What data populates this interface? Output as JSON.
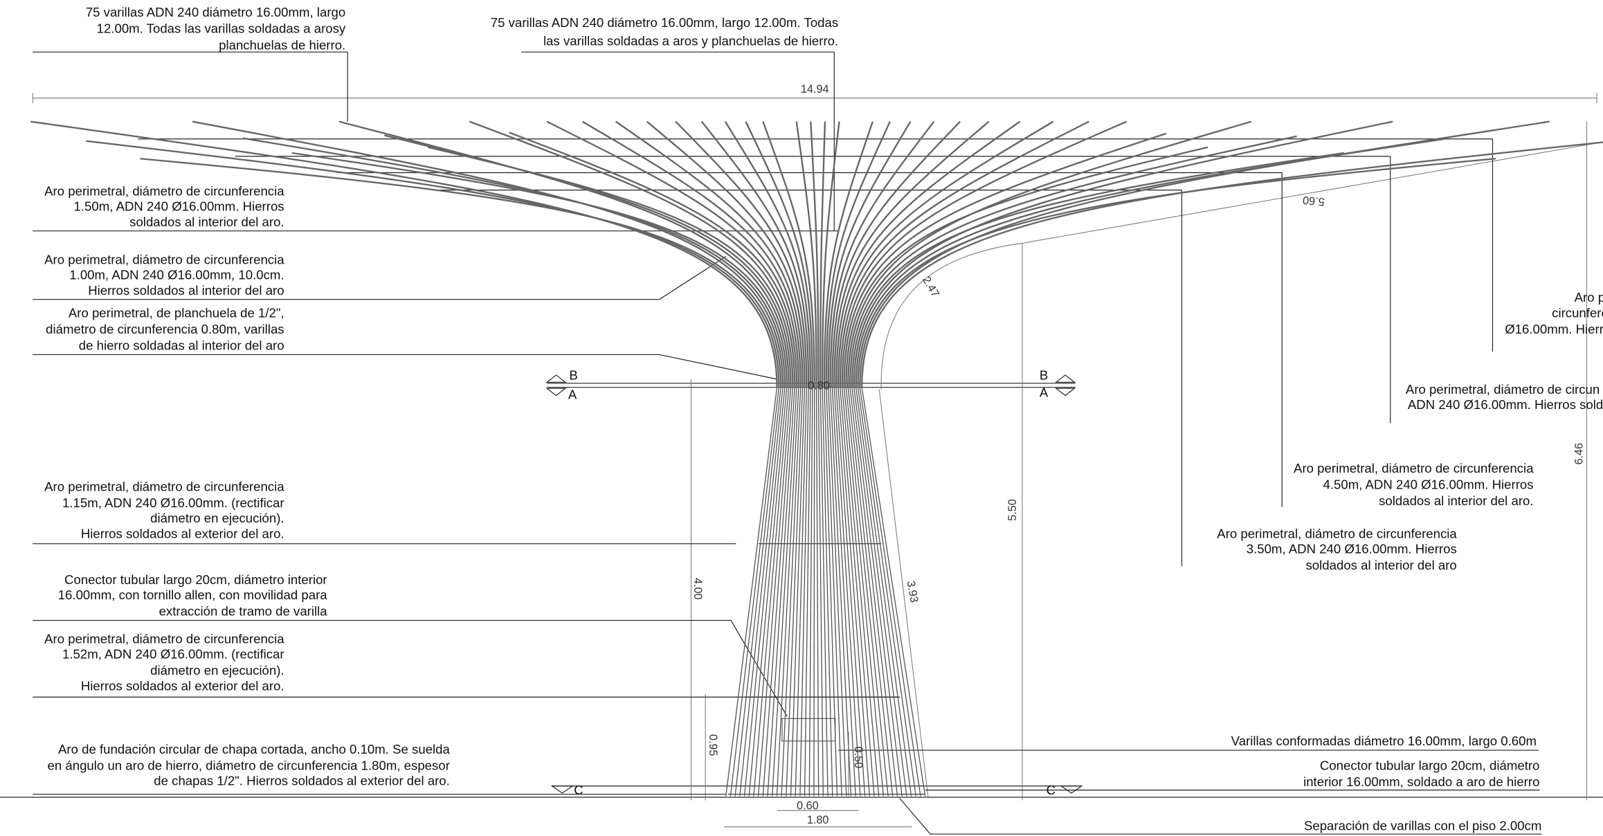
{
  "annotations": [
    {
      "lines": [
        "75 varillas ADN 240 diámetro 16.00mm, largo",
        "12.00m. Todas las varillas soldadas a arosy",
        "planchuelas de hierro."
      ]
    },
    {
      "lines": [
        "75 varillas ADN 240 diámetro 16.00mm, largo 12.00m. Todas",
        "las varillas soldadas a aros y planchuelas de hierro."
      ]
    },
    {
      "lines": [
        "Aro perimetral, diámetro de circunferencia",
        "1.50m, ADN 240 Ø16.00mm. Hierros",
        "soldados al interior del aro."
      ]
    },
    {
      "lines": [
        "Aro perimetral, diámetro de circunferencia",
        "1.00m, ADN 240 Ø16.00mm, 10.0cm.",
        "Hierros soldados al interior del aro"
      ]
    },
    {
      "lines": [
        "Aro perimetral, de planchuela de 1/2\",",
        "diámetro de circunferencia 0.80m, varillas",
        "de hierro soldadas al interior del aro"
      ]
    },
    {
      "lines": [
        "Aro perimetral, diámetro de circunferencia",
        "1.15m, ADN 240 Ø16.00mm. (rectificar",
        "diámetro en ejecución).",
        "Hierros soldados al exterior del aro."
      ]
    },
    {
      "lines": [
        "Conector tubular largo 20cm, diámetro interior",
        "16.00mm, con tornillo allen, con movilidad para",
        "extracción de tramo  de varilla"
      ]
    },
    {
      "lines": [
        "Aro perimetral, diámetro de circunferencia",
        "1.52m, ADN 240 Ø16.00mm. (rectificar",
        "diámetro en ejecución).",
        "Hierros soldados al exterior del aro."
      ]
    },
    {
      "lines": [
        "Aro de fundación circular de chapa cortada, ancho 0.10m. Se suelda",
        "en ángulo un aro de hierro, diámetro de circunferencia 1.80m, espesor",
        "de chapas  1/2\". Hierros soldados al exterior del aro."
      ]
    },
    {
      "lines": [
        "Aro p",
        "circunfere",
        "Ø16.00mm. Hierr"
      ]
    },
    {
      "lines": [
        "Aro perimetral, diámetro de circun",
        "ADN 240 Ø16.00mm. Hierros sold"
      ]
    },
    {
      "lines": [
        "Aro perimetral, diámetro de circunferencia",
        "4.50m, ADN 240 Ø16.00mm. Hierros",
        "soldados al interior del aro."
      ]
    },
    {
      "lines": [
        "Aro perimetral, diámetro de circunferencia",
        "3.50m, ADN 240 Ø16.00mm. Hierros",
        "soldados al interior del aro"
      ]
    },
    {
      "lines": [
        "Varillas conformadas diámetro 16.00mm, largo 0.60m"
      ]
    },
    {
      "lines": [
        "Conector tubular largo 20cm, diámetro",
        "interior 16.00mm, soldado a aro de hierro"
      ]
    },
    {
      "lines": [
        "Separación de varillas con el piso 2.00cm"
      ]
    }
  ],
  "dimensions": [
    "14.94",
    "5.60",
    "2.47",
    "0.80",
    "5.50",
    "6.46",
    "4.00",
    "3.93",
    "0.95",
    "0.50",
    "0.60",
    "1.80"
  ],
  "section_marks": [
    "B",
    "A",
    "B",
    "A",
    "C",
    "C"
  ]
}
